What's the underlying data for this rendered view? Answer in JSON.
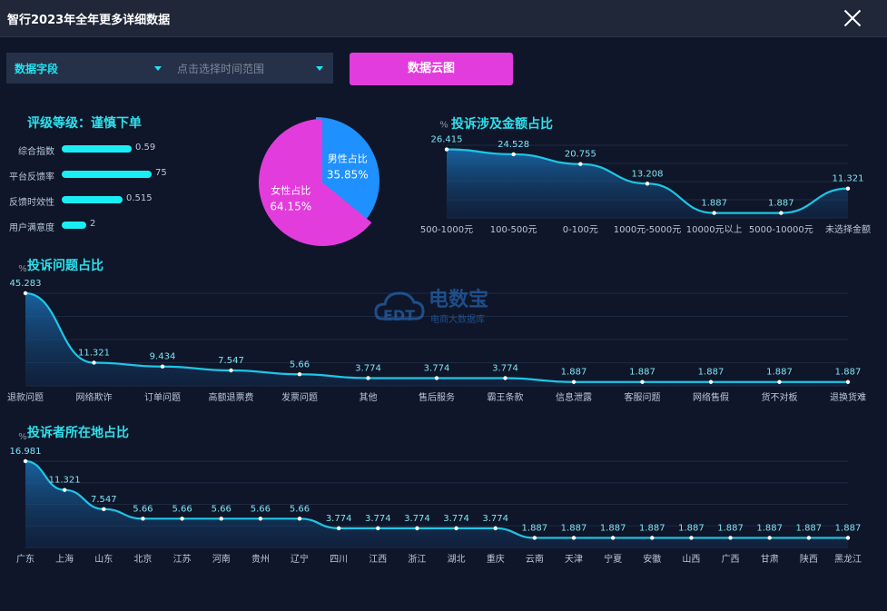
{
  "window": {
    "title": "智行2023年全年更多详细数据"
  },
  "filters": {
    "field_select": "数据字段",
    "time_range_placeholder": "点击选择时间范围",
    "cloud_button": "数据云图"
  },
  "rating": {
    "title": "评级等级：谨慎下单",
    "items": [
      {
        "label": "综合指数",
        "value": 0.59,
        "display": "0.59",
        "fill": 0.55
      },
      {
        "label": "平台反馈率",
        "value": 75,
        "display": "75",
        "fill": 0.71
      },
      {
        "label": "反馈时效性",
        "value": 0.515,
        "display": "0.515",
        "fill": 0.48
      },
      {
        "label": "用户满意度",
        "value": 2,
        "display": "2",
        "fill": 0.19
      }
    ]
  },
  "gender": {
    "slices": [
      {
        "name": "男性占比",
        "value": 35.85,
        "display": "35.85%",
        "color": "#1e90ff"
      },
      {
        "name": "女性占比",
        "value": 64.15,
        "display": "64.15%",
        "color": "#e23cdc"
      }
    ]
  },
  "watermark": {
    "brand": "电数宝",
    "sub": "电商大数据库",
    "logo": "EDT"
  },
  "colors": {
    "accent": "#2fe0ec",
    "line": "#1ec6e6",
    "magenta": "#e23cdc",
    "blue": "#1e90ff"
  },
  "chart_data": [
    {
      "type": "area",
      "title": "投诉涉及金额占比",
      "unit": "%",
      "categories": [
        "500-1000元",
        "100-500元",
        "0-100元",
        "1000元-5000元",
        "10000元以上",
        "5000-10000元",
        "未选择金额"
      ],
      "values": [
        26.415,
        24.528,
        20.755,
        13.208,
        1.887,
        1.887,
        11.321
      ],
      "labels": [
        "26.415",
        "24.528",
        "20.755",
        "13.208",
        "1.887",
        "1.887",
        "11.321"
      ]
    },
    {
      "type": "area",
      "title": "投诉问题占比",
      "unit": "%",
      "categories": [
        "退款问题",
        "网络欺诈",
        "订单问题",
        "高额退票费",
        "发票问题",
        "其他",
        "售后服务",
        "霸王条款",
        "信息泄露",
        "客服问题",
        "网络售假",
        "货不对板",
        "退换货难"
      ],
      "values": [
        45.283,
        11.321,
        9.434,
        7.547,
        5.66,
        3.774,
        3.774,
        3.774,
        1.887,
        1.887,
        1.887,
        1.887,
        1.887
      ],
      "labels": [
        "45.283",
        "11.321",
        "9.434",
        "7.547",
        "5.66",
        "3.774",
        "3.774",
        "3.774",
        "1.887",
        "1.887",
        "1.887",
        "1.887",
        "1.887"
      ]
    },
    {
      "type": "area",
      "title": "投诉者所在地占比",
      "unit": "%",
      "categories": [
        "广东",
        "上海",
        "山东",
        "北京",
        "江苏",
        "河南",
        "贵州",
        "辽宁",
        "四川",
        "江西",
        "浙江",
        "湖北",
        "重庆",
        "云南",
        "天津",
        "宁夏",
        "安徽",
        "山西",
        "广西",
        "甘肃",
        "陕西",
        "黑龙江"
      ],
      "values": [
        16.981,
        11.321,
        7.547,
        5.66,
        5.66,
        5.66,
        5.66,
        5.66,
        3.774,
        3.774,
        3.774,
        3.774,
        3.774,
        1.887,
        1.887,
        1.887,
        1.887,
        1.887,
        1.887,
        1.887,
        1.887,
        1.887
      ],
      "labels": [
        "16.981",
        "11.321",
        "7.547",
        "5.66",
        "5.66",
        "5.66",
        "5.66",
        "5.66",
        "3.774",
        "3.774",
        "3.774",
        "3.774",
        "3.774",
        "1.887",
        "1.887",
        "1.887",
        "1.887",
        "1.887",
        "1.887",
        "1.887",
        "1.887",
        "1.887"
      ]
    }
  ]
}
